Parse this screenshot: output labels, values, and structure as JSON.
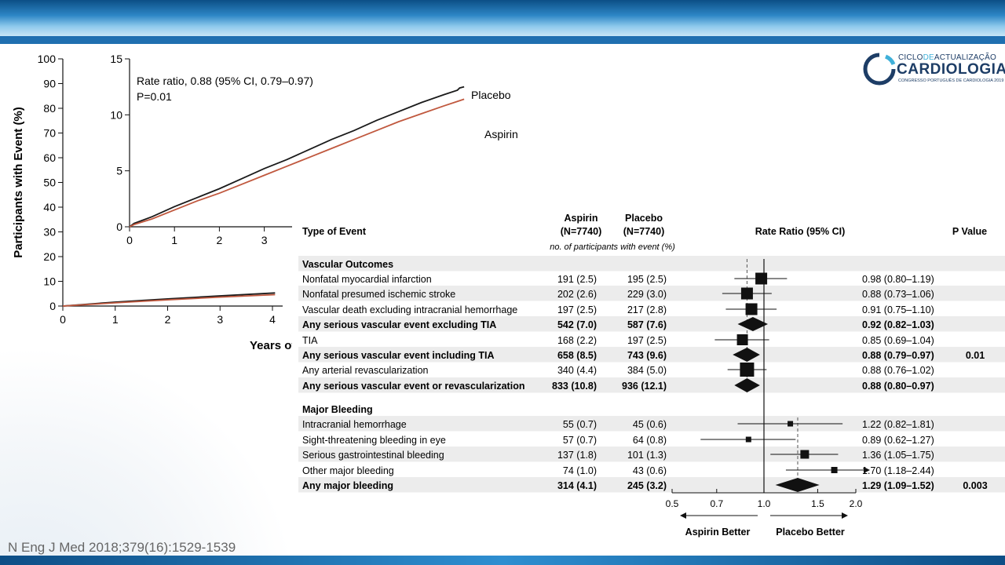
{
  "chart_data": [
    {
      "type": "line",
      "ylabel": "Participants with Event (%)",
      "xlabel": "Years of",
      "ylim": [
        0,
        100
      ],
      "yticks": [
        0,
        10,
        20,
        30,
        40,
        50,
        60,
        70,
        80,
        90,
        100
      ],
      "xticks": [
        0,
        1,
        2,
        3,
        4
      ],
      "series": [
        {
          "name": "Placebo",
          "color": "#1a1a1a",
          "x": [
            0,
            1,
            2,
            3,
            4.05
          ],
          "y": [
            0,
            1.6,
            2.9,
            4.1,
            5.3
          ]
        },
        {
          "name": "Aspirin",
          "color": "#c0583e",
          "x": [
            0,
            1,
            2,
            3,
            4.05
          ],
          "y": [
            0,
            1.3,
            2.5,
            3.6,
            4.6
          ]
        }
      ]
    },
    {
      "type": "line",
      "inset": true,
      "annotation": [
        "Rate ratio, 0.88 (95% CI, 0.79–0.97)",
        "P=0.01"
      ],
      "ylim": [
        0,
        15
      ],
      "yticks": [
        0,
        5,
        10,
        15
      ],
      "xticks": [
        0,
        1,
        2,
        3
      ],
      "series": [
        {
          "name": "Placebo",
          "color": "#1a1a1a",
          "x": [
            0,
            0.1,
            0.5,
            1,
            1.5,
            2,
            2.5,
            3,
            3.5,
            4,
            4.5,
            5,
            5.5,
            6,
            6.5,
            7,
            7.3,
            7.35,
            7.45
          ],
          "y": [
            0,
            0.3,
            0.9,
            1.8,
            2.6,
            3.4,
            4.3,
            5.2,
            6.0,
            6.9,
            7.8,
            8.6,
            9.5,
            10.3,
            11.1,
            11.8,
            12.2,
            12.4,
            12.5
          ]
        },
        {
          "name": "Aspirin",
          "color": "#c0583e",
          "x": [
            0,
            0.1,
            0.5,
            1,
            1.5,
            2,
            2.5,
            3,
            3.5,
            4,
            4.5,
            5,
            5.5,
            6,
            6.5,
            7,
            7.3,
            7.45
          ],
          "y": [
            0,
            0.2,
            0.7,
            1.5,
            2.3,
            3.0,
            3.8,
            4.6,
            5.4,
            6.2,
            7.0,
            7.8,
            8.6,
            9.4,
            10.1,
            10.8,
            11.2,
            11.4
          ]
        }
      ]
    },
    {
      "type": "forest",
      "columns": {
        "type": "Type of Event",
        "aspirin": [
          "Aspirin",
          "(N=7740)"
        ],
        "placebo": [
          "Placebo",
          "(N=7740)"
        ],
        "subtitle": "no. of participants with event (%)",
        "ratio": "Rate Ratio (95% CI)",
        "pvalue": "P Value"
      },
      "axis": {
        "ticks": [
          {
            "v": 0.5,
            "label": "0.5"
          },
          {
            "v": 0.7,
            "label": "0.7"
          },
          {
            "v": 1.0,
            "label": "1.0"
          },
          {
            "v": 1.5,
            "label": "1.5"
          },
          {
            "v": 2.0,
            "label": "2.0"
          }
        ],
        "left_label": "Aspirin Better",
        "right_label": "Placebo Better",
        "log_scale": true
      },
      "rows": [
        {
          "kind": "section",
          "label": "Vascular Outcomes"
        },
        {
          "label": "Nonfatal myocardial infarction",
          "aspirin": "191 (2.5)",
          "placebo": "195 (2.5)",
          "ci_text": "0.98 (0.80–1.19)",
          "est": 0.98,
          "lo": 0.8,
          "hi": 1.19,
          "marker": "square",
          "size": 15
        },
        {
          "label": "Nonfatal presumed ischemic stroke",
          "aspirin": "202 (2.6)",
          "placebo": "229 (3.0)",
          "ci_text": "0.88 (0.73–1.06)",
          "est": 0.88,
          "lo": 0.73,
          "hi": 1.06,
          "marker": "square",
          "size": 15
        },
        {
          "label": "Vascular death excluding intracranial hemorrhage",
          "aspirin": "197 (2.5)",
          "placebo": "217 (2.8)",
          "ci_text": "0.91 (0.75–1.10)",
          "est": 0.91,
          "lo": 0.75,
          "hi": 1.1,
          "marker": "square",
          "size": 15
        },
        {
          "label": "Any serious vascular event excluding TIA",
          "bold": true,
          "aspirin": "542 (7.0)",
          "placebo": "587 (7.6)",
          "ci_text": "0.92 (0.82–1.03)",
          "est": 0.92,
          "lo": 0.82,
          "hi": 1.03,
          "marker": "diamond"
        },
        {
          "label": "TIA",
          "aspirin": "168 (2.2)",
          "placebo": "197 (2.5)",
          "ci_text": "0.85 (0.69–1.04)",
          "est": 0.85,
          "lo": 0.69,
          "hi": 1.04,
          "marker": "square",
          "size": 14
        },
        {
          "label": "Any serious vascular event including TIA",
          "bold": true,
          "aspirin": "658 (8.5)",
          "placebo": "743 (9.6)",
          "ci_text": "0.88 (0.79–0.97)",
          "pvalue": "0.01",
          "est": 0.88,
          "lo": 0.79,
          "hi": 0.97,
          "marker": "diamond"
        },
        {
          "label": "Any arterial revascularization",
          "aspirin": "340 (4.4)",
          "placebo": "384 (5.0)",
          "ci_text": "0.88 (0.76–1.02)",
          "est": 0.88,
          "lo": 0.76,
          "hi": 1.02,
          "marker": "square",
          "size": 18
        },
        {
          "label": "Any serious vascular event or revascularization",
          "bold": true,
          "aspirin": "833 (10.8)",
          "placebo": "936 (12.1)",
          "ci_text": "0.88 (0.80–0.97)",
          "est": 0.88,
          "lo": 0.8,
          "hi": 0.97,
          "marker": "diamond"
        },
        {
          "kind": "section",
          "label": "Major Bleeding"
        },
        {
          "label": "Intracranial hemorrhage",
          "aspirin": "55 (0.7)",
          "placebo": "45 (0.6)",
          "ci_text": "1.22 (0.82–1.81)",
          "est": 1.22,
          "lo": 0.82,
          "hi": 1.81,
          "marker": "square",
          "size": 7
        },
        {
          "label": "Sight-threatening bleeding in eye",
          "aspirin": "57 (0.7)",
          "placebo": "64 (0.8)",
          "ci_text": "0.89 (0.62–1.27)",
          "est": 0.89,
          "lo": 0.62,
          "hi": 1.27,
          "marker": "square",
          "size": 7
        },
        {
          "label": "Serious gastrointestinal bleeding",
          "aspirin": "137 (1.8)",
          "placebo": "101 (1.3)",
          "ci_text": "1.36 (1.05–1.75)",
          "est": 1.36,
          "lo": 1.05,
          "hi": 1.75,
          "marker": "square",
          "size": 11
        },
        {
          "label": "Other major bleeding",
          "aspirin": "74 (1.0)",
          "placebo": "43 (0.6)",
          "ci_text": "1.70 (1.18–2.44)",
          "est": 1.7,
          "lo": 1.18,
          "hi": 2.44,
          "marker": "square",
          "size": 8,
          "arrow": true
        },
        {
          "label": "Any major bleeding",
          "bold": true,
          "aspirin": "314 (4.1)",
          "placebo": "245 (3.2)",
          "ci_text": "1.29 (1.09–1.52)",
          "pvalue": "0.003",
          "est": 1.29,
          "lo": 1.09,
          "hi": 1.52,
          "marker": "diamond"
        }
      ]
    }
  ],
  "logo": {
    "line1a": "CICLO",
    "line1b": "DE",
    "line1c": "ACTUALIZAÇÃO",
    "line2": "CARDIOLOGIA",
    "line3": "CONGRESSO PORTUGUÊS DE CARDIOLOGIA 2019"
  },
  "citation": "N Eng J Med 2018;379(16):1529-1539"
}
